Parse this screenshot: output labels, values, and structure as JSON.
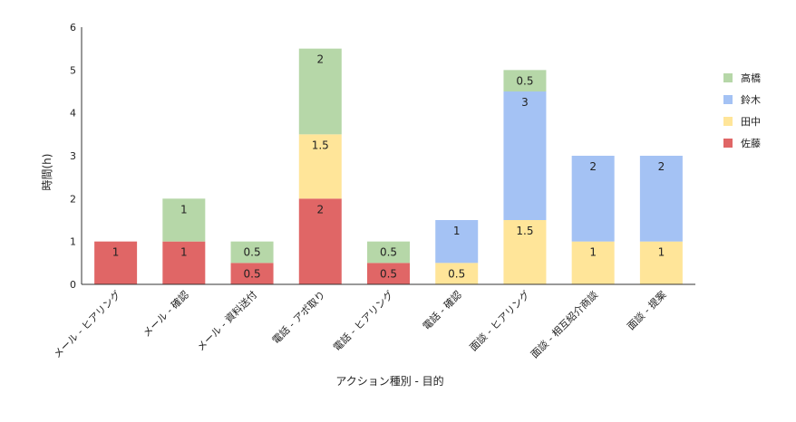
{
  "chart_data": {
    "type": "bar",
    "stacked": true,
    "title": "",
    "xlabel": "アクション種別 - 目的",
    "ylabel": "時間(h)",
    "ylim": [
      0,
      6
    ],
    "yticks": [
      0,
      1,
      2,
      3,
      4,
      5,
      6
    ],
    "grid": false,
    "legend_position": "right",
    "categories": [
      "メール - ヒアリング",
      "メール - 確認",
      "メール - 資料送付",
      "電話 - アポ取り",
      "電話 - ヒアリング",
      "電話 - 確認",
      "面談 - ヒアリング",
      "面談 - 相互紹介商談",
      "面談 - 提案"
    ],
    "series": [
      {
        "name": "佐藤",
        "color": "#e06666",
        "values": [
          1,
          1,
          0.5,
          2,
          0.5,
          0,
          0,
          0,
          0
        ]
      },
      {
        "name": "田中",
        "color": "#ffe599",
        "values": [
          0,
          0,
          0,
          1.5,
          0,
          0.5,
          1.5,
          1,
          1
        ]
      },
      {
        "name": "鈴木",
        "color": "#a4c2f4",
        "values": [
          0,
          0,
          0,
          0,
          0,
          1,
          3,
          2,
          2
        ]
      },
      {
        "name": "高橋",
        "color": "#b6d7a8",
        "values": [
          0,
          1,
          0.5,
          2,
          0.5,
          0,
          0.5,
          0,
          0
        ]
      }
    ],
    "legend_order": [
      "高橋",
      "鈴木",
      "田中",
      "佐藤"
    ]
  }
}
